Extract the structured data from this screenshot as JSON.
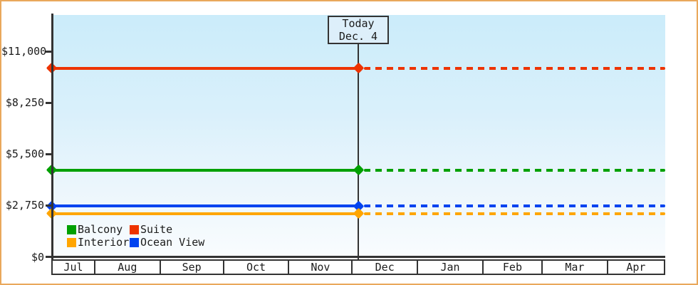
{
  "chart_data": {
    "type": "line",
    "title": "",
    "y_axis": {
      "tick_values": [
        0,
        2750,
        5500,
        8250,
        11000
      ],
      "tick_labels": [
        "$0",
        "$2,750",
        "$5,500",
        "$8,250",
        "$11,000"
      ],
      "max": 11000,
      "ylim": [
        0,
        12100
      ]
    },
    "x_axis": {
      "months": [
        "Jul",
        "Aug",
        "Sep",
        "Oct",
        "Nov",
        "Dec",
        "Jan",
        "Feb",
        "Mar",
        "Apr"
      ],
      "month_days": [
        20,
        31,
        30,
        31,
        30,
        31,
        31,
        28,
        31,
        27
      ]
    },
    "today": {
      "line1": "Today",
      "line2": "Dec. 4",
      "month_index": 5,
      "day": 4
    },
    "series": [
      {
        "name": "Suite",
        "color": "#ee3300",
        "value": 10100,
        "style_before_today": "solid",
        "style_after_today": "dashed"
      },
      {
        "name": "Balcony",
        "color": "#00a000",
        "value": 4650,
        "style_before_today": "solid",
        "style_after_today": "dashed"
      },
      {
        "name": "Ocean View",
        "color": "#0043f0",
        "value": 2715,
        "style_before_today": "solid",
        "style_after_today": "dashed"
      },
      {
        "name": "Interior",
        "color": "#ffa500",
        "value": 2320,
        "style_before_today": "solid",
        "style_after_today": "dashed"
      }
    ],
    "legend": {
      "rows": [
        [
          "Balcony",
          "Suite"
        ],
        [
          "Interior",
          "Ocean View"
        ]
      ],
      "position": "bottom-left-inside"
    },
    "colors": {
      "frame_border": "#e9a85c",
      "axis": "#333333",
      "plot_gradient_top": "#cbecfa",
      "plot_gradient_bottom": "#f9fcfe",
      "today_box_fill": "#ddeffa"
    }
  }
}
